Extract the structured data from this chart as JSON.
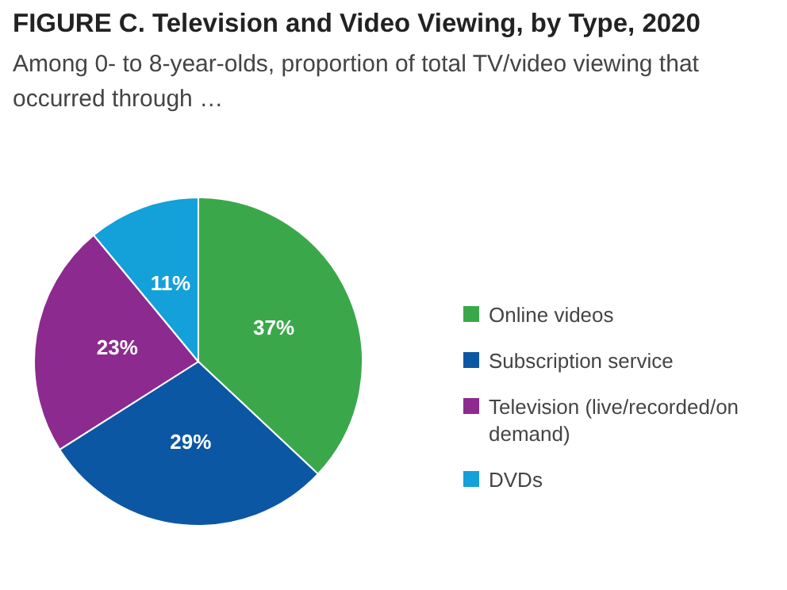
{
  "chart_data": {
    "type": "pie",
    "title": "FIGURE C. Television and Video Viewing, by Type, 2020",
    "subtitle": "Among 0- to 8-year-olds, proportion of total TV/video viewing that occurred through …",
    "categories": [
      "Online videos",
      "Subscription service",
      "Television (live/recorded/on demand)",
      "DVDs"
    ],
    "values": [
      37,
      29,
      23,
      11
    ],
    "colors": [
      "#3aa84a",
      "#0c57a4",
      "#8d2a8f",
      "#14a0d9"
    ],
    "value_labels": [
      "37%",
      "29%",
      "23%",
      "11%"
    ],
    "legend": "right"
  }
}
